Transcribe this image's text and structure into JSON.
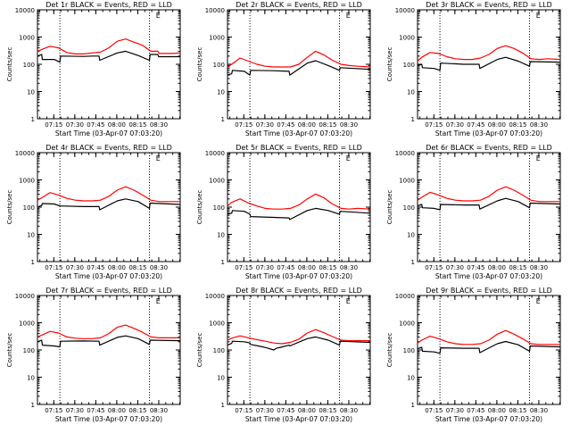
{
  "figure": {
    "colors": {
      "events": "#000000",
      "lld": "#ff0000",
      "axes": "#000000",
      "background": "#ffffff"
    }
  },
  "chart_data": [
    {
      "type": "line",
      "title": "Det 1r BLACK = Events, RED = LLD",
      "xlabel": "Start Time (03-Apr-07 07:03:20)",
      "ylabel": "Counts/sec",
      "x_tick_labels": [
        "07:15",
        "07:30",
        "07:45",
        "08:00",
        "08:15",
        "08:30"
      ],
      "y_tick_labels": [
        "1",
        "10",
        "100",
        "1000",
        "10000"
      ],
      "yscale": "log",
      "ylim": [
        1,
        10000
      ],
      "marker_E": "E",
      "series": [
        {
          "name": "LLD",
          "color": "#ff0000",
          "time_min": [
            0,
            3,
            9,
            15,
            21,
            27,
            33,
            39,
            45,
            51,
            57,
            63,
            69,
            75,
            81,
            86,
            87,
            93,
            96,
            102
          ],
          "values": [
            300,
            350,
            460,
            400,
            270,
            240,
            240,
            260,
            280,
            400,
            700,
            850,
            650,
            500,
            300,
            300,
            250,
            250,
            250,
            260
          ]
        },
        {
          "name": "Events",
          "color": "#000000",
          "time_min": [
            0,
            3,
            3.5,
            12,
            16,
            16.5,
            33,
            39,
            44,
            44.5,
            57,
            63,
            72,
            80,
            80.5,
            86,
            86.5,
            102
          ],
          "values": [
            200,
            230,
            150,
            150,
            120,
            200,
            195,
            200,
            200,
            140,
            260,
            300,
            210,
            140,
            230,
            230,
            190,
            190
          ]
        }
      ]
    },
    {
      "type": "line",
      "title": "Det 2r BLACK = Events, RED = LLD",
      "xlabel": "Start Time (03-Apr-07 07:03:20)",
      "ylabel": "Counts/sec",
      "x_tick_labels": [
        "07:15",
        "07:30",
        "07:45",
        "08:00",
        "08:15",
        "08:30"
      ],
      "y_tick_labels": [
        "1",
        "10",
        "100",
        "1000",
        "10000"
      ],
      "yscale": "log",
      "ylim": [
        1,
        10000
      ],
      "marker_E": "E",
      "series": [
        {
          "name": "LLD",
          "color": "#ff0000",
          "time_min": [
            0,
            3,
            9,
            15,
            21,
            27,
            33,
            39,
            45,
            51,
            57,
            63,
            69,
            75,
            81,
            87,
            93,
            102
          ],
          "values": [
            80,
            100,
            170,
            130,
            100,
            85,
            80,
            80,
            80,
            100,
            180,
            300,
            220,
            140,
            100,
            90,
            85,
            80
          ]
        },
        {
          "name": "Events",
          "color": "#000000",
          "time_min": [
            0,
            3,
            3.5,
            12,
            16,
            16.5,
            33,
            44,
            44.5,
            57,
            63,
            72,
            80,
            80.5,
            102
          ],
          "values": [
            40,
            45,
            60,
            55,
            40,
            60,
            58,
            55,
            40,
            110,
            135,
            90,
            60,
            75,
            65
          ]
        }
      ]
    },
    {
      "type": "line",
      "title": "Det 3r BLACK = Events, RED = LLD",
      "xlabel": "Start Time (03-Apr-07 07:03:20)",
      "ylabel": "Counts/sec",
      "x_tick_labels": [
        "07:15",
        "07:30",
        "07:45",
        "08:00",
        "08:15",
        "08:30"
      ],
      "y_tick_labels": [
        "1",
        "10",
        "100",
        "1000",
        "10000"
      ],
      "yscale": "log",
      "ylim": [
        1,
        10000
      ],
      "marker_E": "E",
      "series": [
        {
          "name": "LLD",
          "color": "#ff0000",
          "time_min": [
            0,
            3,
            9,
            15,
            21,
            27,
            33,
            39,
            45,
            51,
            57,
            63,
            69,
            75,
            81,
            87,
            93,
            102
          ],
          "values": [
            130,
            180,
            270,
            250,
            190,
            160,
            150,
            150,
            170,
            230,
            380,
            480,
            380,
            260,
            160,
            150,
            160,
            150
          ]
        },
        {
          "name": "Events",
          "color": "#000000",
          "time_min": [
            0,
            3,
            3.5,
            12,
            16,
            16.5,
            33,
            44,
            44.5,
            57,
            63,
            72,
            80,
            80.5,
            102
          ],
          "values": [
            90,
            100,
            75,
            70,
            60,
            110,
            100,
            100,
            70,
            150,
            180,
            130,
            85,
            125,
            120
          ]
        }
      ]
    },
    {
      "type": "line",
      "title": "Det 4r BLACK = Events, RED = LLD",
      "xlabel": "Start Time (03-Apr-07 07:03:20)",
      "ylabel": "Counts/sec",
      "x_tick_labels": [
        "07:15",
        "07:30",
        "07:45",
        "08:00",
        "08:15",
        "08:30"
      ],
      "y_tick_labels": [
        "1",
        "10",
        "100",
        "1000",
        "10000"
      ],
      "yscale": "log",
      "ylim": [
        1,
        10000
      ],
      "marker_E": "E",
      "series": [
        {
          "name": "LLD",
          "color": "#ff0000",
          "time_min": [
            0,
            3,
            9,
            15,
            21,
            27,
            33,
            39,
            45,
            51,
            57,
            63,
            69,
            75,
            81,
            87,
            93,
            102
          ],
          "values": [
            180,
            220,
            340,
            280,
            210,
            180,
            170,
            170,
            180,
            250,
            420,
            560,
            420,
            280,
            180,
            160,
            160,
            160
          ]
        },
        {
          "name": "Events",
          "color": "#000000",
          "time_min": [
            0,
            3,
            3.5,
            12,
            16,
            16.5,
            33,
            44,
            44.5,
            57,
            63,
            72,
            80,
            80.5,
            102
          ],
          "values": [
            100,
            115,
            135,
            130,
            110,
            110,
            105,
            105,
            80,
            170,
            200,
            160,
            90,
            140,
            125
          ]
        }
      ]
    },
    {
      "type": "line",
      "title": "Det 5r BLACK = Events, RED = LLD",
      "xlabel": "Start Time (03-Apr-07 07:03:20)",
      "ylabel": "Counts/sec",
      "x_tick_labels": [
        "07:15",
        "07:30",
        "07:45",
        "08:00",
        "08:15",
        "08:30"
      ],
      "y_tick_labels": [
        "1",
        "10",
        "100",
        "1000",
        "10000"
      ],
      "yscale": "log",
      "ylim": [
        1,
        10000
      ],
      "marker_E": "E",
      "series": [
        {
          "name": "LLD",
          "color": "#ff0000",
          "time_min": [
            0,
            3,
            9,
            15,
            21,
            27,
            33,
            39,
            45,
            51,
            57,
            63,
            69,
            75,
            81,
            87,
            93,
            102
          ],
          "values": [
            110,
            150,
            200,
            140,
            110,
            90,
            85,
            85,
            90,
            120,
            200,
            300,
            220,
            130,
            90,
            85,
            90,
            85
          ]
        },
        {
          "name": "Events",
          "color": "#000000",
          "time_min": [
            0,
            3,
            3.5,
            12,
            16,
            16.5,
            33,
            44,
            44.5,
            57,
            63,
            72,
            80,
            80.5,
            102
          ],
          "values": [
            55,
            60,
            75,
            70,
            55,
            45,
            42,
            40,
            35,
            75,
            90,
            75,
            55,
            70,
            60
          ]
        }
      ]
    },
    {
      "type": "line",
      "title": "Det 6r BLACK = Events, RED = LLD",
      "xlabel": "Start Time (03-Apr-07 07:03:20)",
      "ylabel": "Counts/sec",
      "x_tick_labels": [
        "07:15",
        "07:30",
        "07:45",
        "08:00",
        "08:15",
        "08:30"
      ],
      "y_tick_labels": [
        "1",
        "10",
        "100",
        "1000",
        "10000"
      ],
      "yscale": "log",
      "ylim": [
        1,
        10000
      ],
      "marker_E": "E",
      "series": [
        {
          "name": "LLD",
          "color": "#ff0000",
          "time_min": [
            0,
            3,
            9,
            15,
            21,
            27,
            33,
            39,
            45,
            51,
            57,
            63,
            69,
            75,
            81,
            87,
            93,
            102
          ],
          "values": [
            180,
            230,
            350,
            280,
            210,
            180,
            170,
            170,
            180,
            250,
            420,
            560,
            420,
            280,
            180,
            160,
            160,
            160
          ]
        },
        {
          "name": "Events",
          "color": "#000000",
          "time_min": [
            0,
            3,
            3.5,
            12,
            16,
            16.5,
            33,
            44,
            44.5,
            57,
            63,
            72,
            80,
            80.5,
            102
          ],
          "values": [
            110,
            125,
            95,
            90,
            80,
            125,
            120,
            120,
            85,
            170,
            210,
            160,
            95,
            140,
            130
          ]
        }
      ]
    },
    {
      "type": "line",
      "title": "Det 7r BLACK = Events, RED = LLD",
      "xlabel": "Start Time (03-Apr-07 07:03:20)",
      "ylabel": "Counts/sec",
      "x_tick_labels": [
        "07:15",
        "07:30",
        "07:45",
        "08:00",
        "08:15",
        "08:30"
      ],
      "y_tick_labels": [
        "1",
        "10",
        "100",
        "1000",
        "10000"
      ],
      "yscale": "log",
      "ylim": [
        1,
        10000
      ],
      "marker_E": "E",
      "series": [
        {
          "name": "LLD",
          "color": "#ff0000",
          "time_min": [
            0,
            3,
            9,
            15,
            21,
            27,
            33,
            39,
            45,
            51,
            57,
            63,
            69,
            75,
            81,
            87,
            93,
            102
          ],
          "values": [
            300,
            350,
            480,
            420,
            300,
            270,
            260,
            260,
            280,
            400,
            680,
            820,
            620,
            450,
            300,
            280,
            280,
            280
          ]
        },
        {
          "name": "Events",
          "color": "#000000",
          "time_min": [
            0,
            3,
            3.5,
            12,
            16,
            16.5,
            33,
            44,
            44.5,
            57,
            63,
            72,
            80,
            80.5,
            102
          ],
          "values": [
            200,
            230,
            150,
            140,
            130,
            210,
            215,
            210,
            150,
            290,
            330,
            260,
            160,
            230,
            220
          ]
        }
      ]
    },
    {
      "type": "line",
      "title": "Det 8r BLACK = Events, RED = LLD",
      "xlabel": "Start Time (03-Apr-07 07:03:20)",
      "ylabel": "Counts/sec",
      "x_tick_labels": [
        "07:15",
        "07:30",
        "07:45",
        "08:00",
        "08:15",
        "08:30"
      ],
      "y_tick_labels": [
        "1",
        "10",
        "100",
        "1000",
        "10000"
      ],
      "yscale": "log",
      "ylim": [
        1,
        10000
      ],
      "marker_E": "E",
      "series": [
        {
          "name": "LLD",
          "color": "#ff0000",
          "time_min": [
            0,
            3,
            9,
            15,
            21,
            27,
            33,
            39,
            45,
            51,
            57,
            63,
            69,
            75,
            81,
            87,
            93,
            102
          ],
          "values": [
            230,
            270,
            330,
            280,
            240,
            210,
            180,
            170,
            190,
            250,
            420,
            560,
            430,
            310,
            230,
            220,
            220,
            220
          ]
        },
        {
          "name": "Events",
          "color": "#000000",
          "time_min": [
            0,
            3,
            3.5,
            12,
            16,
            16.5,
            22,
            28,
            33,
            35,
            38,
            44,
            44.5,
            57,
            63,
            72,
            80,
            80.5,
            102
          ],
          "values": [
            150,
            175,
            210,
            200,
            180,
            160,
            140,
            120,
            100,
            115,
            125,
            150,
            140,
            260,
            300,
            230,
            150,
            210,
            190
          ]
        }
      ]
    },
    {
      "type": "line",
      "title": "Det 9r BLACK = Events, RED = LLD",
      "xlabel": "Start Time (03-Apr-07 07:03:20)",
      "ylabel": "Counts/sec",
      "x_tick_labels": [
        "07:15",
        "07:30",
        "07:45",
        "08:00",
        "08:15",
        "08:30"
      ],
      "y_tick_labels": [
        "1",
        "10",
        "100",
        "1000",
        "10000"
      ],
      "yscale": "log",
      "ylim": [
        1,
        10000
      ],
      "marker_E": "E",
      "series": [
        {
          "name": "LLD",
          "color": "#ff0000",
          "time_min": [
            0,
            3,
            9,
            15,
            21,
            27,
            33,
            39,
            45,
            51,
            57,
            63,
            69,
            75,
            81,
            87,
            93,
            102
          ],
          "values": [
            180,
            230,
            320,
            260,
            200,
            170,
            160,
            160,
            170,
            230,
            380,
            520,
            380,
            260,
            170,
            160,
            160,
            160
          ]
        },
        {
          "name": "Events",
          "color": "#000000",
          "time_min": [
            0,
            3,
            3.5,
            12,
            16,
            16.5,
            33,
            44,
            44.5,
            57,
            63,
            72,
            80,
            80.5,
            102
          ],
          "values": [
            110,
            125,
            90,
            85,
            75,
            120,
            115,
            115,
            80,
            170,
            205,
            155,
            90,
            140,
            130
          ]
        }
      ]
    }
  ]
}
